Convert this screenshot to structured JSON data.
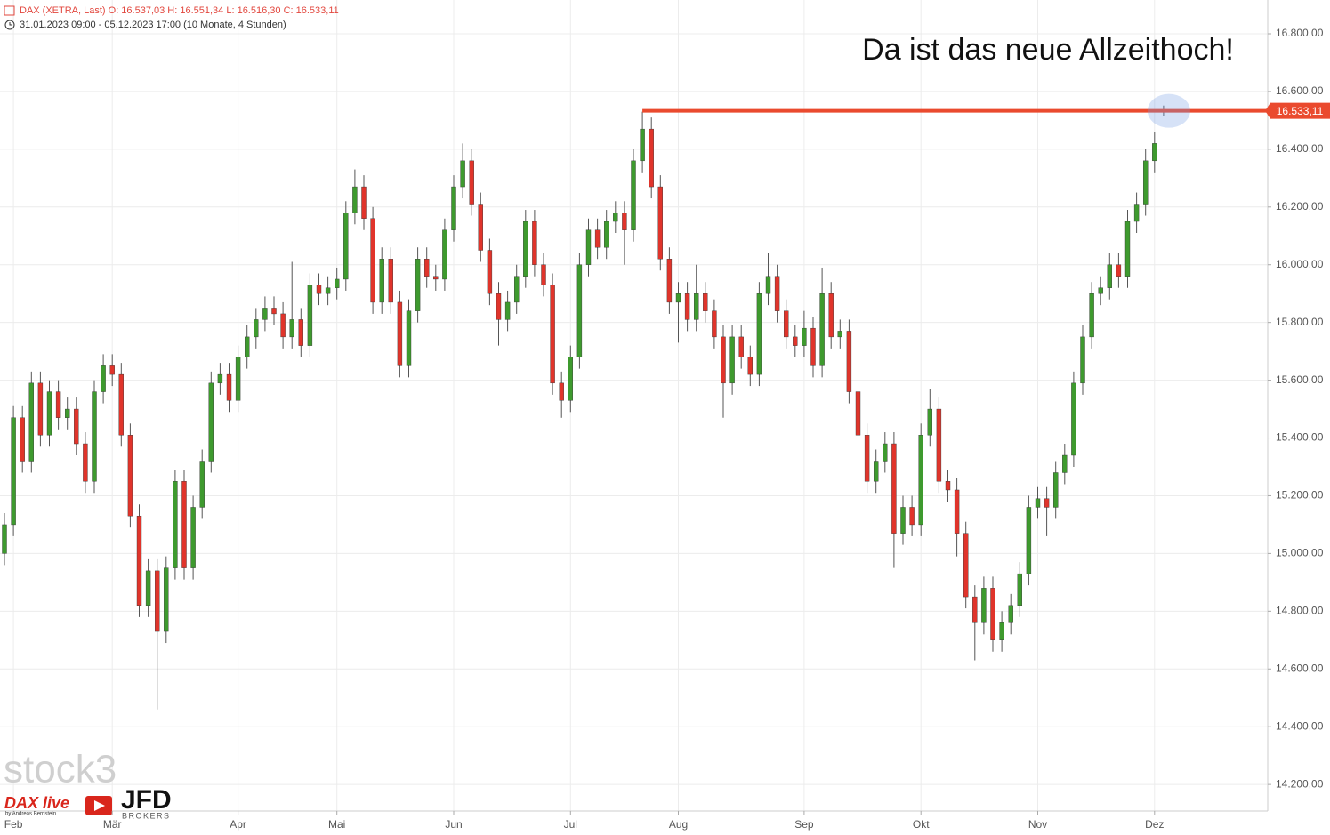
{
  "chart_data": {
    "type": "candlestick",
    "header": "DAX (XETRA, Last)  O: 16.537,03  H: 16.551,34  L: 16.516,30  C: 16.533,11",
    "subheader": "31.01.2023 09:00 - 05.12.2023 17:00   (10 Monate, 4 Stunden)",
    "annotation": "Da ist das neue Allzeithoch!",
    "logos": {
      "stock": "stock3",
      "dax_live": "DAX live",
      "dax_by": "by Andreas Bernstein",
      "jfd": "JFD",
      "brokers": "BROKERS"
    },
    "up_color": "#3e9a2e",
    "down_color": "#e0342b",
    "categories": [
      null,
      "Feb",
      null,
      null,
      null,
      null,
      null,
      null,
      null,
      null,
      null,
      null,
      "Mär",
      null,
      null,
      null,
      null,
      null,
      null,
      null,
      null,
      null,
      null,
      null,
      null,
      null,
      "Apr",
      null,
      null,
      null,
      null,
      null,
      null,
      null,
      null,
      null,
      null,
      "Mai",
      null,
      null,
      null,
      null,
      null,
      null,
      null,
      null,
      null,
      null,
      null,
      null,
      "Jun",
      null,
      null,
      null,
      null,
      null,
      null,
      null,
      null,
      null,
      null,
      null,
      null,
      "Jul",
      null,
      null,
      null,
      null,
      null,
      null,
      null,
      null,
      null,
      null,
      null,
      "Aug",
      null,
      null,
      null,
      null,
      null,
      null,
      null,
      null,
      null,
      null,
      null,
      null,
      null,
      "Sep",
      null,
      null,
      null,
      null,
      null,
      null,
      null,
      null,
      null,
      null,
      null,
      null,
      "Okt",
      null,
      null,
      null,
      null,
      null,
      null,
      null,
      null,
      null,
      null,
      null,
      null,
      "Nov",
      null,
      null,
      null,
      null,
      null,
      null,
      null,
      null,
      null,
      null,
      null,
      null,
      "Dez",
      null
    ],
    "open": [
      15000,
      15100,
      15470,
      15320,
      15590,
      15410,
      15560,
      15470,
      15500,
      15380,
      15250,
      15560,
      15650,
      15620,
      15410,
      15130,
      14820,
      14940,
      14730,
      14950,
      15250,
      14950,
      15160,
      15320,
      15590,
      15620,
      15530,
      15680,
      15750,
      15810,
      15850,
      15830,
      15750,
      15810,
      15720,
      15930,
      15900,
      15920,
      15950,
      16180,
      16270,
      16160,
      15870,
      16020,
      15870,
      15650,
      15840,
      16020,
      15960,
      15950,
      16120,
      16270,
      16360,
      16210,
      16050,
      15900,
      15810,
      15870,
      15960,
      16150,
      16000,
      15930,
      15590,
      15530,
      15680,
      16000,
      16120,
      16060,
      16150,
      16180,
      16120,
      16360,
      16470,
      16270,
      16020,
      15870,
      15900,
      15810,
      15900,
      15840,
      15750,
      15590,
      15750,
      15680,
      15620,
      15900,
      15960,
      15840,
      15750,
      15720,
      15780,
      15650,
      15900,
      15750,
      15770,
      15560,
      15410,
      15250,
      15320,
      15380,
      15070,
      15160,
      15100,
      15410,
      15500,
      15250,
      15220,
      15070,
      14850,
      14760,
      14880,
      14700,
      14760,
      14820,
      14930,
      15160,
      15190,
      15160,
      15280,
      15340,
      15590,
      15750,
      15900,
      15920,
      16000,
      15960,
      16150,
      16210,
      16360,
      16537.03
    ],
    "high": [
      15140,
      15510,
      15510,
      15630,
      15630,
      15600,
      15600,
      15540,
      15540,
      15420,
      15600,
      15690,
      15690,
      15660,
      15450,
      15170,
      14980,
      14980,
      14990,
      15290,
      15290,
      15200,
      15360,
      15630,
      15660,
      15660,
      15720,
      15790,
      15850,
      15890,
      15890,
      15870,
      16010,
      15850,
      15970,
      15970,
      15960,
      15990,
      16220,
      16330,
      16310,
      16200,
      16060,
      16060,
      15910,
      15880,
      16060,
      16060,
      16000,
      16160,
      16310,
      16420,
      16400,
      16250,
      16090,
      15940,
      15910,
      16000,
      16190,
      16190,
      16040,
      15970,
      15630,
      15720,
      16040,
      16160,
      16160,
      16190,
      16220,
      16220,
      16400,
      16530,
      16510,
      16310,
      16060,
      15940,
      15940,
      16000,
      15940,
      15880,
      15790,
      15790,
      15790,
      15720,
      15940,
      16040,
      16000,
      15880,
      15790,
      15840,
      15820,
      15990,
      15940,
      15810,
      15810,
      15600,
      15450,
      15360,
      15420,
      15420,
      15200,
      15200,
      15450,
      15570,
      15540,
      15290,
      15260,
      15110,
      14890,
      14920,
      14920,
      14800,
      14860,
      14970,
      15200,
      15230,
      15230,
      15320,
      15380,
      15630,
      15790,
      15940,
      15960,
      16040,
      16040,
      16190,
      16250,
      16400,
      16460,
      16551.34
    ],
    "low": [
      14960,
      15060,
      15280,
      15280,
      15370,
      15370,
      15430,
      15430,
      15340,
      15210,
      15210,
      15520,
      15580,
      15370,
      15090,
      14780,
      14780,
      14460,
      14690,
      14910,
      14910,
      14910,
      15120,
      15280,
      15550,
      15490,
      15490,
      15640,
      15710,
      15770,
      15790,
      15710,
      15710,
      15680,
      15680,
      15860,
      15860,
      15880,
      15910,
      16140,
      16120,
      15830,
      15830,
      15830,
      15610,
      15610,
      15800,
      15920,
      15910,
      15910,
      16080,
      16230,
      16170,
      16010,
      15860,
      15720,
      15770,
      15830,
      15920,
      15960,
      15890,
      15550,
      15470,
      15490,
      15640,
      15960,
      16020,
      16020,
      16110,
      16000,
      16080,
      16320,
      16230,
      15980,
      15830,
      15730,
      15770,
      15770,
      15800,
      15710,
      15470,
      15550,
      15640,
      15580,
      15580,
      15860,
      15800,
      15710,
      15680,
      15680,
      15610,
      15610,
      15710,
      15710,
      15520,
      15370,
      15210,
      15210,
      15280,
      14950,
      15030,
      15060,
      15060,
      15370,
      15210,
      15180,
      14990,
      14810,
      14630,
      14720,
      14660,
      14660,
      14720,
      14780,
      14890,
      15120,
      15060,
      15120,
      15240,
      15300,
      15550,
      15710,
      15860,
      15880,
      15920,
      15920,
      16110,
      16170,
      16320,
      16516.3
    ],
    "close": [
      15100,
      15470,
      15320,
      15590,
      15410,
      15560,
      15470,
      15500,
      15380,
      15250,
      15560,
      15650,
      15620,
      15410,
      15130,
      14820,
      14940,
      14730,
      14950,
      15250,
      14950,
      15160,
      15320,
      15590,
      15620,
      15530,
      15680,
      15750,
      15810,
      15850,
      15830,
      15750,
      15810,
      15720,
      15930,
      15900,
      15920,
      15950,
      16180,
      16270,
      16160,
      15870,
      16020,
      15870,
      15650,
      15840,
      16020,
      15960,
      15950,
      16120,
      16270,
      16360,
      16210,
      16050,
      15900,
      15810,
      15870,
      15960,
      16150,
      16000,
      15930,
      15590,
      15530,
      15680,
      16000,
      16120,
      16060,
      16150,
      16180,
      16120,
      16360,
      16470,
      16270,
      16020,
      15870,
      15900,
      15810,
      15900,
      15840,
      15750,
      15590,
      15750,
      15680,
      15620,
      15900,
      15960,
      15840,
      15750,
      15720,
      15780,
      15650,
      15900,
      15750,
      15770,
      15560,
      15410,
      15250,
      15320,
      15380,
      15070,
      15160,
      15100,
      15410,
      15500,
      15250,
      15220,
      15070,
      14850,
      14760,
      14880,
      14700,
      14760,
      14820,
      14930,
      15160,
      15190,
      15160,
      15280,
      15340,
      15590,
      15750,
      15900,
      15920,
      16000,
      15960,
      16150,
      16210,
      16360,
      16420,
      16533.11
    ],
    "ylim": [
      14108,
      16917
    ],
    "yticks": [
      {
        "value": 14200,
        "label": "14.200,00"
      },
      {
        "value": 14400,
        "label": "14.400,00"
      },
      {
        "value": 14600,
        "label": "14.600,00"
      },
      {
        "value": 14800,
        "label": "14.800,00"
      },
      {
        "value": 15000,
        "label": "15.000,00"
      },
      {
        "value": 15200,
        "label": "15.200,00"
      },
      {
        "value": 15400,
        "label": "15.400,00"
      },
      {
        "value": 15600,
        "label": "15.600,00"
      },
      {
        "value": 15800,
        "label": "15.800,00"
      },
      {
        "value": 16000,
        "label": "16.000,00"
      },
      {
        "value": 16200,
        "label": "16.200,00"
      },
      {
        "value": 16400,
        "label": "16.400,00"
      },
      {
        "value": 16600,
        "label": "16.600,00"
      },
      {
        "value": 16800,
        "label": "16.800,00"
      }
    ],
    "grid": true,
    "reference_line": {
      "value": 16533.11,
      "label": "16.533,11",
      "color": "#ea4a2e"
    }
  }
}
